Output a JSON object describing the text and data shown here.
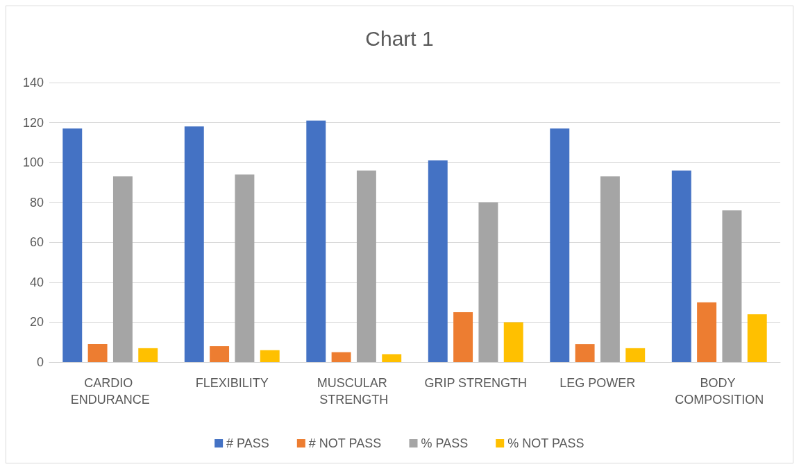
{
  "chart_data": {
    "type": "bar",
    "title": "Chart 1",
    "categories": [
      "CARDIO ENDURANCE",
      "FLEXIBILITY",
      "MUSCULAR STRENGTH",
      "GRIP STRENGTH",
      "LEG POWER",
      "BODY COMPOSITION"
    ],
    "series": [
      {
        "name": "# PASS",
        "color": "#4472c4",
        "values": [
          117,
          118,
          121,
          101,
          117,
          96
        ]
      },
      {
        "name": "# NOT PASS",
        "color": "#ed7d31",
        "values": [
          9,
          8,
          5,
          25,
          9,
          30
        ]
      },
      {
        "name": "% PASS",
        "color": "#a5a5a5",
        "values": [
          93,
          94,
          96,
          80,
          93,
          76
        ]
      },
      {
        "name": "% NOT PASS",
        "color": "#ffc000",
        "values": [
          7,
          6,
          4,
          20,
          7,
          24
        ]
      }
    ],
    "ylim": [
      0,
      140
    ],
    "yticks": [
      0,
      20,
      40,
      60,
      80,
      100,
      120,
      140
    ],
    "grid": "y",
    "legend": "bottom"
  }
}
